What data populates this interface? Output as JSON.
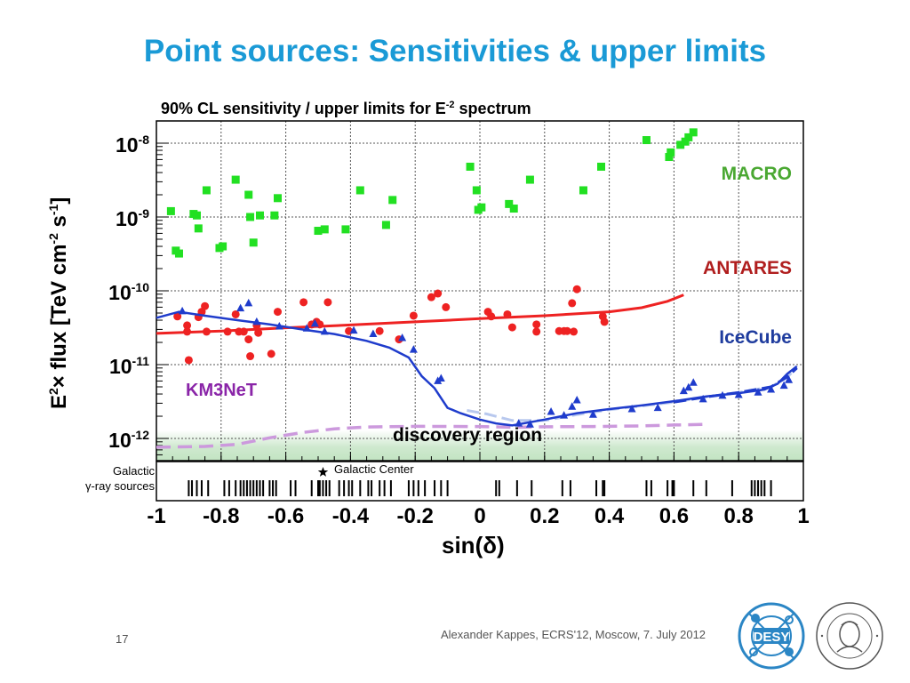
{
  "slide": {
    "title": "Point sources: Sensitivities & upper limits",
    "footer": "Alexander Kappes, ECRS'12, Moscow, 7. July 2012",
    "page_number": "17",
    "logos": {
      "left": "DESY",
      "right_seal": "HUMBOLDT-UNIVERSITÄT ZU BERLIN"
    }
  },
  "chart_data": {
    "type": "scatter",
    "title_parts": {
      "main": "90% CL sensitivity / upper limits for E",
      "exponent": "-2",
      "tail": " spectrum"
    },
    "xlabel": "sin(δ)",
    "ylabel_parts": {
      "a": "E",
      "a_exp": "2",
      "b": "× flux [TeV cm",
      "b_exp": "-2",
      "c": " s",
      "c_exp": "-1",
      "d": "]"
    },
    "xlim": [
      -1,
      1
    ],
    "ylim": [
      5e-13,
      2e-08
    ],
    "yscale": "log",
    "grid": true,
    "x_ticks": [
      -1,
      -0.8,
      -0.6,
      -0.4,
      -0.2,
      0,
      0.2,
      0.4,
      0.6,
      0.8,
      1
    ],
    "x_tick_labels": [
      "-1",
      "-0.8",
      "-0.6",
      "-0.4",
      "-0.2",
      "0",
      "0.2",
      "0.4",
      "0.6",
      "0.8",
      "1"
    ],
    "y_ticks": [
      1e-12,
      1e-11,
      1e-10,
      1e-09,
      1e-08
    ],
    "y_tick_labels": [
      {
        "base": "10",
        "exp": "-12"
      },
      {
        "base": "10",
        "exp": "-11"
      },
      {
        "base": "10",
        "exp": "-10"
      },
      {
        "base": "10",
        "exp": "-9"
      },
      {
        "base": "10",
        "exp": "-8"
      }
    ],
    "discovery_region": {
      "label": "discovery region",
      "y_top": 1.3e-12
    },
    "colors": {
      "macro": "#22e022",
      "antares": "#ee2222",
      "icecube": "#1f3ccc",
      "km3net": "#cc99dd",
      "icecube_sens": "#b8c8ee",
      "discovery": "#cfe9cf"
    },
    "series": [
      {
        "name": "MACRO",
        "marker": "square",
        "points": [
          [
            -0.955,
            1.2e-09
          ],
          [
            -0.94,
            3.5e-10
          ],
          [
            -0.93,
            3.2e-10
          ],
          [
            -0.885,
            1.1e-09
          ],
          [
            -0.875,
            1.05e-09
          ],
          [
            -0.87,
            7e-10
          ],
          [
            -0.845,
            2.3e-09
          ],
          [
            -0.805,
            3.8e-10
          ],
          [
            -0.795,
            4e-10
          ],
          [
            -0.755,
            3.2e-09
          ],
          [
            -0.715,
            2e-09
          ],
          [
            -0.71,
            1e-09
          ],
          [
            -0.7,
            4.5e-10
          ],
          [
            -0.68,
            1.05e-09
          ],
          [
            -0.635,
            1.05e-09
          ],
          [
            -0.625,
            1.8e-09
          ],
          [
            -0.5,
            6.5e-10
          ],
          [
            -0.48,
            6.8e-10
          ],
          [
            -0.415,
            6.8e-10
          ],
          [
            -0.37,
            2.3e-09
          ],
          [
            -0.29,
            7.8e-10
          ],
          [
            -0.27,
            1.7e-09
          ],
          [
            -0.03,
            4.8e-09
          ],
          [
            -0.01,
            2.3e-09
          ],
          [
            -0.005,
            1.25e-09
          ],
          [
            0.005,
            1.35e-09
          ],
          [
            0.09,
            1.5e-09
          ],
          [
            0.105,
            1.3e-09
          ],
          [
            0.155,
            3.2e-09
          ],
          [
            0.32,
            2.3e-09
          ],
          [
            0.375,
            4.8e-09
          ],
          [
            0.515,
            1.1e-08
          ],
          [
            0.585,
            6.5e-09
          ],
          [
            0.59,
            7.5e-09
          ],
          [
            0.62,
            9.5e-09
          ],
          [
            0.635,
            1.05e-08
          ],
          [
            0.645,
            1.2e-08
          ],
          [
            0.66,
            1.4e-08
          ]
        ]
      },
      {
        "name": "ANTARES",
        "marker": "circle",
        "curve": [
          [
            -1,
            2.65e-11
          ],
          [
            -0.8,
            2.85e-11
          ],
          [
            -0.6,
            3.15e-11
          ],
          [
            -0.4,
            3.45e-11
          ],
          [
            -0.2,
            3.8e-11
          ],
          [
            0,
            4.2e-11
          ],
          [
            0.2,
            4.6e-11
          ],
          [
            0.4,
            5.2e-11
          ],
          [
            0.5,
            5.9e-11
          ],
          [
            0.58,
            7.2e-11
          ],
          [
            0.63,
            8.8e-11
          ]
        ],
        "points": [
          [
            -0.935,
            4.5e-11
          ],
          [
            -0.905,
            3.4e-11
          ],
          [
            -0.905,
            2.8e-11
          ],
          [
            -0.9,
            1.15e-11
          ],
          [
            -0.87,
            4.4e-11
          ],
          [
            -0.86,
            5.2e-11
          ],
          [
            -0.85,
            6.2e-11
          ],
          [
            -0.845,
            2.8e-11
          ],
          [
            -0.78,
            2.8e-11
          ],
          [
            -0.755,
            4.8e-11
          ],
          [
            -0.745,
            2.8e-11
          ],
          [
            -0.73,
            2.8e-11
          ],
          [
            -0.715,
            2.2e-11
          ],
          [
            -0.71,
            1.3e-11
          ],
          [
            -0.69,
            3.4e-11
          ],
          [
            -0.685,
            2.7e-11
          ],
          [
            -0.645,
            1.4e-11
          ],
          [
            -0.625,
            5.2e-11
          ],
          [
            -0.545,
            7e-11
          ],
          [
            -0.52,
            3.5e-11
          ],
          [
            -0.505,
            3.8e-11
          ],
          [
            -0.495,
            3.5e-11
          ],
          [
            -0.47,
            7e-11
          ],
          [
            -0.405,
            2.85e-11
          ],
          [
            -0.31,
            2.85e-11
          ],
          [
            -0.25,
            2.2e-11
          ],
          [
            -0.205,
            4.6e-11
          ],
          [
            -0.15,
            8.2e-11
          ],
          [
            -0.13,
            9.2e-11
          ],
          [
            -0.105,
            6e-11
          ],
          [
            0.025,
            5.2e-11
          ],
          [
            0.035,
            4.5e-11
          ],
          [
            0.085,
            4.8e-11
          ],
          [
            0.1,
            3.2e-11
          ],
          [
            0.175,
            3.5e-11
          ],
          [
            0.175,
            2.8e-11
          ],
          [
            0.245,
            2.85e-11
          ],
          [
            0.26,
            2.85e-11
          ],
          [
            0.27,
            2.85e-11
          ],
          [
            0.285,
            6.8e-11
          ],
          [
            0.29,
            2.8e-11
          ],
          [
            0.3,
            1.05e-10
          ],
          [
            0.38,
            4.5e-11
          ],
          [
            0.385,
            3.8e-11
          ]
        ]
      },
      {
        "name": "IceCube",
        "marker": "triangle",
        "curve": [
          [
            -1,
            4.3e-11
          ],
          [
            -0.93,
            5.2e-11
          ],
          [
            -0.85,
            4.6e-11
          ],
          [
            -0.75,
            4e-11
          ],
          [
            -0.65,
            3.5e-11
          ],
          [
            -0.55,
            3e-11
          ],
          [
            -0.45,
            2.6e-11
          ],
          [
            -0.35,
            2.1e-11
          ],
          [
            -0.28,
            1.7e-11
          ],
          [
            -0.22,
            1.25e-11
          ],
          [
            -0.18,
            7e-12
          ],
          [
            -0.14,
            4.8e-12
          ],
          [
            -0.1,
            2.6e-12
          ],
          [
            -0.06,
            2.2e-12
          ],
          [
            0,
            1.8e-12
          ],
          [
            0.05,
            1.6e-12
          ],
          [
            0.1,
            1.5e-12
          ],
          [
            0.2,
            1.8e-12
          ],
          [
            0.3,
            2.2e-12
          ],
          [
            0.4,
            2.5e-12
          ],
          [
            0.5,
            2.8e-12
          ],
          [
            0.6,
            3.2e-12
          ],
          [
            0.7,
            3.7e-12
          ],
          [
            0.8,
            4.1e-12
          ],
          [
            0.88,
            4.6e-12
          ],
          [
            0.92,
            5.5e-12
          ],
          [
            0.95,
            7.5e-12
          ],
          [
            0.98,
            9.5e-12
          ]
        ],
        "curve_dashed": [
          [
            -0.04,
            2.4e-12
          ],
          [
            0.02,
            2.15e-12
          ],
          [
            0.1,
            1.75e-12
          ],
          [
            0.2,
            1.75e-12
          ],
          [
            0.3,
            2.1e-12
          ],
          [
            0.4,
            2.45e-12
          ],
          [
            0.5,
            2.75e-12
          ],
          [
            0.6,
            3.1e-12
          ],
          [
            0.7,
            3.65e-12
          ],
          [
            0.8,
            4.2e-12
          ],
          [
            0.9,
            5e-12
          ],
          [
            0.95,
            6.8e-12
          ],
          [
            0.98,
            9e-12
          ]
        ],
        "points": [
          [
            -0.92,
            5.3e-11
          ],
          [
            -0.74,
            5.8e-11
          ],
          [
            -0.715,
            6.8e-11
          ],
          [
            -0.69,
            3.8e-11
          ],
          [
            -0.62,
            3.3e-11
          ],
          [
            -0.535,
            3.1e-11
          ],
          [
            -0.51,
            3.6e-11
          ],
          [
            -0.48,
            2.8e-11
          ],
          [
            -0.39,
            2.9e-11
          ],
          [
            -0.33,
            2.6e-11
          ],
          [
            -0.24,
            2.3e-11
          ],
          [
            -0.205,
            1.6e-11
          ],
          [
            -0.13,
            6e-12
          ],
          [
            -0.12,
            6.5e-12
          ],
          [
            0.12,
            1.6e-12
          ],
          [
            0.155,
            1.55e-12
          ],
          [
            0.22,
            2.3e-12
          ],
          [
            0.26,
            2.05e-12
          ],
          [
            0.285,
            2.7e-12
          ],
          [
            0.3,
            3.3e-12
          ],
          [
            0.35,
            2.1e-12
          ],
          [
            0.47,
            2.5e-12
          ],
          [
            0.55,
            2.6e-12
          ],
          [
            0.63,
            4.4e-12
          ],
          [
            0.645,
            4.9e-12
          ],
          [
            0.66,
            5.7e-12
          ],
          [
            0.69,
            3.4e-12
          ],
          [
            0.75,
            3.8e-12
          ],
          [
            0.8,
            3.9e-12
          ],
          [
            0.86,
            4.2e-12
          ],
          [
            0.9,
            4.6e-12
          ],
          [
            0.94,
            5.2e-12
          ],
          [
            0.955,
            6.2e-12
          ]
        ]
      },
      {
        "name": "KM3NeT",
        "marker": "none",
        "curve_dashed": [
          [
            -1,
            7.6e-13
          ],
          [
            -0.85,
            7.8e-13
          ],
          [
            -0.75,
            8.3e-13
          ],
          [
            -0.65,
            1.02e-12
          ],
          [
            -0.55,
            1.2e-12
          ],
          [
            -0.45,
            1.35e-12
          ],
          [
            -0.35,
            1.43e-12
          ],
          [
            -0.2,
            1.46e-12
          ],
          [
            0,
            1.45e-12
          ],
          [
            0.1,
            1.42e-12
          ],
          [
            0.2,
            1.44e-12
          ],
          [
            0.35,
            1.45e-12
          ],
          [
            0.5,
            1.48e-12
          ],
          [
            0.6,
            1.52e-12
          ],
          [
            0.7,
            1.55e-12
          ]
        ]
      }
    ],
    "galactic_sources": {
      "label_line1": "Galactic",
      "label_line2": "γ-ray sources",
      "center_label": "Galactic Center",
      "center_x": -0.485,
      "x_positions": [
        -0.9,
        -0.89,
        -0.875,
        -0.86,
        -0.84,
        -0.79,
        -0.775,
        -0.755,
        -0.74,
        -0.73,
        -0.72,
        -0.71,
        -0.7,
        -0.69,
        -0.68,
        -0.67,
        -0.65,
        -0.64,
        -0.63,
        -0.585,
        -0.57,
        -0.52,
        -0.5,
        -0.495,
        -0.485,
        -0.475,
        -0.465,
        -0.435,
        -0.42,
        -0.405,
        -0.395,
        -0.37,
        -0.345,
        -0.335,
        -0.31,
        -0.295,
        -0.275,
        -0.22,
        -0.205,
        -0.19,
        -0.17,
        -0.14,
        -0.12,
        -0.1,
        0.05,
        0.06,
        0.115,
        0.16,
        0.255,
        0.28,
        0.36,
        0.38,
        0.385,
        0.515,
        0.53,
        0.58,
        0.595,
        0.6,
        0.66,
        0.7,
        0.78,
        0.84,
        0.85,
        0.86,
        0.87,
        0.88,
        0.9
      ]
    },
    "series_labels": {
      "macro": "MACRO",
      "antares": "ANTARES",
      "icecube": "IceCube",
      "km3net": "KM3NeT"
    }
  }
}
